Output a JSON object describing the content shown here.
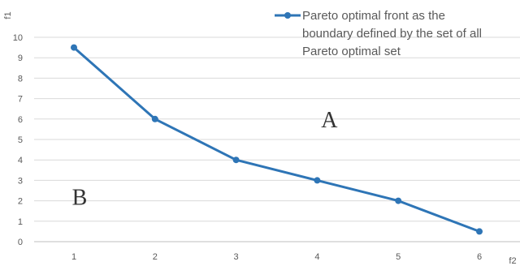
{
  "chart_data": {
    "type": "line",
    "x": [
      1,
      2,
      3,
      4,
      5,
      6
    ],
    "series": [
      {
        "name": "Pareto optimal front as the boundary defined by the set of all Pareto optimal set",
        "values": [
          9.5,
          6,
          4,
          3,
          2,
          0.5
        ]
      }
    ],
    "xlabel": "f2",
    "ylabel": "f1",
    "x_ticks": [
      1,
      2,
      3,
      4,
      5,
      6
    ],
    "y_ticks": [
      0,
      1,
      2,
      3,
      4,
      5,
      6,
      7,
      8,
      9,
      10
    ],
    "ylim": [
      0,
      10
    ],
    "grid": "horizontal",
    "legend_placement": "top-right",
    "legend_lines": [
      "Pareto optimal front as the",
      "boundary defined by the set of all",
      "Pareto optimal set"
    ],
    "annotations": [
      {
        "text": "A",
        "x": 4.15,
        "y": 6
      },
      {
        "text": "B",
        "x": 1.07,
        "y": 2.2
      }
    ],
    "colors": {
      "series": "#2E75B6",
      "grid": "#D9D9D9",
      "axis": "#BFBFBF",
      "text": "#595959"
    }
  }
}
